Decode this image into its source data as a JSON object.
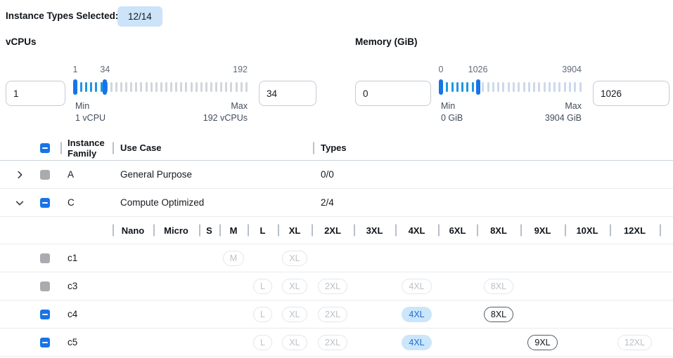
{
  "page": {
    "title_label": "Instance Types Selected:",
    "selected_badge": "12/14"
  },
  "filters": {
    "vcpus": {
      "label": "vCPUs",
      "from_value": "1",
      "to_value": "34",
      "slider": {
        "range_min": 1,
        "range_max": 192,
        "lower": 1,
        "upper": 34,
        "lower_label": "1",
        "upper_label": "34",
        "max_label": "192",
        "min_title": "Min",
        "min_caption": "1 vCPU",
        "max_title": "Max",
        "max_caption": "192 vCPUs"
      }
    },
    "memory": {
      "label": "Memory (GiB)",
      "from_value": "0",
      "to_value": "1026",
      "slider": {
        "range_min": 0,
        "range_max": 3904,
        "lower": 0,
        "upper": 1026,
        "lower_label": "0",
        "upper_label": "1026",
        "max_label": "3904",
        "min_title": "Min",
        "min_caption": "0 GiB",
        "max_title": "Max",
        "max_caption": "3904 GiB"
      }
    }
  },
  "table": {
    "headers": {
      "family": "Instance Family",
      "use_case": "Use Case",
      "types": "Types"
    },
    "size_columns": [
      "Nano",
      "Micro",
      "S",
      "M",
      "L",
      "XL",
      "2XL",
      "3XL",
      "4XL",
      "6XL",
      "8XL",
      "9XL",
      "10XL",
      "12XL"
    ],
    "family_rows": [
      {
        "expander": "collapsed",
        "checkbox": "disabled",
        "family": "A",
        "use_case": "General Purpose",
        "types": "0/0"
      },
      {
        "expander": "expanded",
        "checkbox": "indeterminate",
        "family": "C",
        "use_case": "Compute Optimized",
        "types": "2/4"
      }
    ],
    "instance_rows": [
      {
        "checkbox": "disabled",
        "name": "c1",
        "sizes": [
          {
            "size": "M",
            "state": "disabled"
          },
          {
            "size": "XL",
            "state": "disabled"
          }
        ]
      },
      {
        "checkbox": "disabled",
        "name": "c3",
        "sizes": [
          {
            "size": "L",
            "state": "disabled"
          },
          {
            "size": "XL",
            "state": "disabled"
          },
          {
            "size": "2XL",
            "state": "disabled"
          },
          {
            "size": "4XL",
            "state": "disabled"
          },
          {
            "size": "8XL",
            "state": "disabled"
          }
        ]
      },
      {
        "checkbox": "indeterminate",
        "name": "c4",
        "sizes": [
          {
            "size": "L",
            "state": "disabled"
          },
          {
            "size": "XL",
            "state": "disabled"
          },
          {
            "size": "2XL",
            "state": "disabled"
          },
          {
            "size": "4XL",
            "state": "selected"
          },
          {
            "size": "8XL",
            "state": "enabled"
          }
        ]
      },
      {
        "checkbox": "indeterminate",
        "name": "c5",
        "sizes": [
          {
            "size": "L",
            "state": "disabled"
          },
          {
            "size": "XL",
            "state": "disabled"
          },
          {
            "size": "2XL",
            "state": "disabled"
          },
          {
            "size": "4XL",
            "state": "selected"
          },
          {
            "size": "9XL",
            "state": "enabled"
          },
          {
            "size": "12XL",
            "state": "disabled"
          }
        ]
      }
    ]
  },
  "colors": {
    "accent_blue": "#1874e8",
    "badge_bg": "#cce3f9",
    "slider_active_tick": "#2196e3",
    "pill_selected_bg": "#cbe5fb",
    "pill_selected_text": "#1a6fd4",
    "disabled_checkbox_gray": "#a9abae"
  }
}
